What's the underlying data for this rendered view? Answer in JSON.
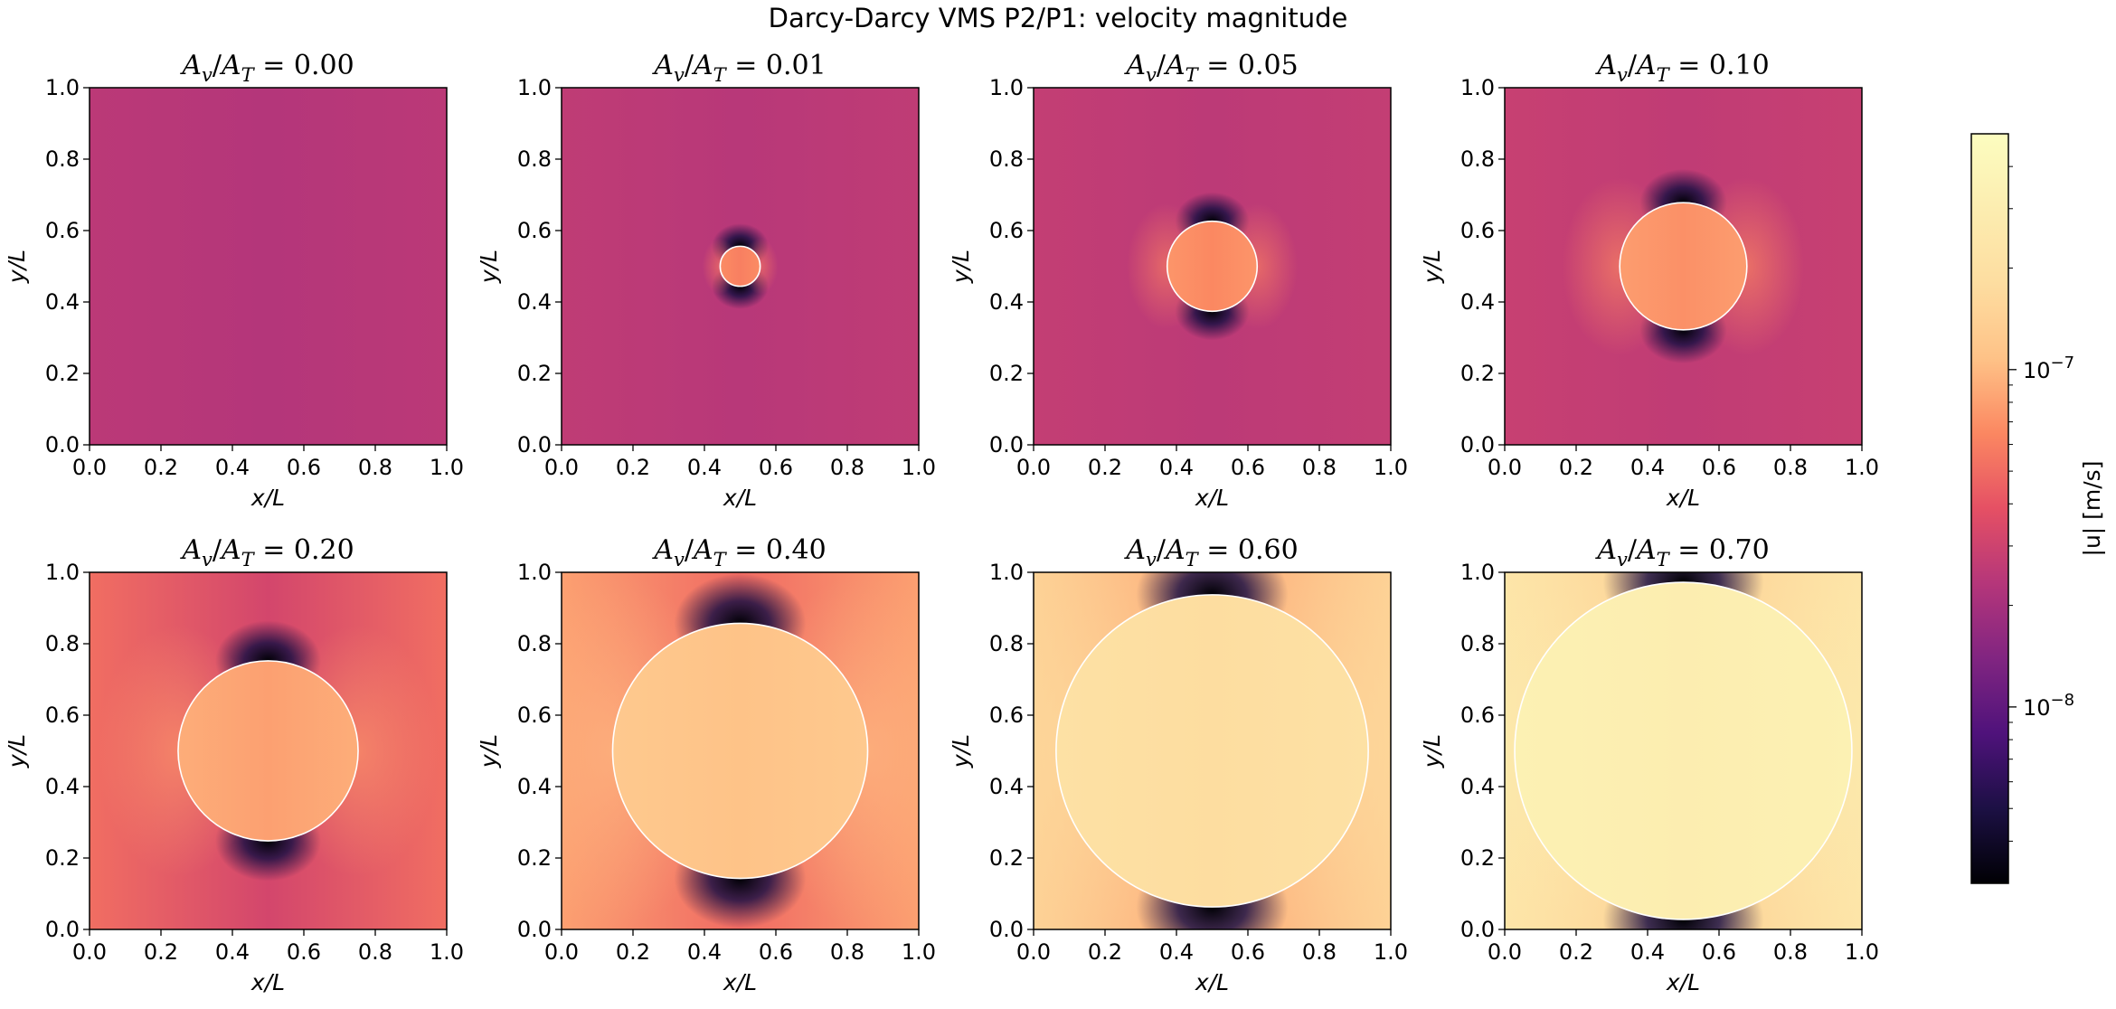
{
  "figure": {
    "title": "Darcy-Darcy VMS P2/P1: velocity magnitude"
  },
  "chart_data": {
    "type": "heatmap",
    "title": "Darcy-Darcy VMS P2/P1: velocity magnitude",
    "colormap": "magma",
    "scale": "log",
    "xlabel": "x/L",
    "ylabel": "y/L",
    "xlim": [
      0.0,
      1.0
    ],
    "ylim": [
      0.0,
      1.0
    ],
    "x_ticks": [
      "0.0",
      "0.2",
      "0.4",
      "0.6",
      "0.8",
      "1.0"
    ],
    "y_ticks": [
      "0.0",
      "0.2",
      "0.4",
      "0.6",
      "0.8",
      "1.0"
    ],
    "grid": false,
    "panels": [
      {
        "label": "A_v/A_T = 0.00",
        "ratio": "0.00",
        "inclusion_radius": 0.0,
        "inclusion_velocity": 2.3e-08,
        "background_velocity": 2.3e-08,
        "interface_color": "#ffffff"
      },
      {
        "label": "A_v/A_T = 0.01",
        "ratio": "0.01",
        "inclusion_radius": 0.056,
        "inclusion_velocity": 6e-08,
        "background_velocity": 2.4e-08,
        "interface_color": "#ffffff"
      },
      {
        "label": "A_v/A_T = 0.05",
        "ratio": "0.05",
        "inclusion_radius": 0.126,
        "inclusion_velocity": 6.5e-08,
        "background_velocity": 2.5e-08,
        "interface_color": "#ffffff"
      },
      {
        "label": "A_v/A_T = 0.10",
        "ratio": "0.10",
        "inclusion_radius": 0.178,
        "inclusion_velocity": 7e-08,
        "background_velocity": 2.6e-08,
        "interface_color": "#ffffff"
      },
      {
        "label": "A_v/A_T = 0.20",
        "ratio": "0.20",
        "inclusion_radius": 0.252,
        "inclusion_velocity": 8e-08,
        "background_velocity": 3.2e-08,
        "interface_color": "#ffffff"
      },
      {
        "label": "A_v/A_T = 0.40",
        "ratio": "0.40",
        "inclusion_radius": 0.357,
        "inclusion_velocity": 1.1e-07,
        "background_velocity": 5e-08,
        "interface_color": "#ffffff"
      },
      {
        "label": "A_v/A_T = 0.60",
        "ratio": "0.60",
        "inclusion_radius": 0.437,
        "inclusion_velocity": 1.8e-07,
        "background_velocity": 9e-08,
        "interface_color": "#ffffff"
      },
      {
        "label": "A_v/A_T = 0.70",
        "ratio": "0.70",
        "inclusion_radius": 0.472,
        "inclusion_velocity": 3e-07,
        "background_velocity": 1.4e-07,
        "interface_color": "#ffffff"
      }
    ],
    "colorbar": {
      "label": "|u| [m/s]",
      "range": [
        3e-09,
        5e-07
      ],
      "major_ticks": [
        {
          "value": 1e-08,
          "mantissa": "10",
          "exponent": "−8"
        },
        {
          "value": 1e-07,
          "mantissa": "10",
          "exponent": "−7"
        }
      ],
      "minor_ticks": [
        4e-09,
        5e-09,
        6e-09,
        7e-09,
        8e-09,
        9e-09,
        2e-08,
        3e-08,
        4e-08,
        5e-08,
        6e-08,
        7e-08,
        8e-08,
        9e-08,
        2e-07,
        3e-07,
        4e-07
      ]
    }
  }
}
